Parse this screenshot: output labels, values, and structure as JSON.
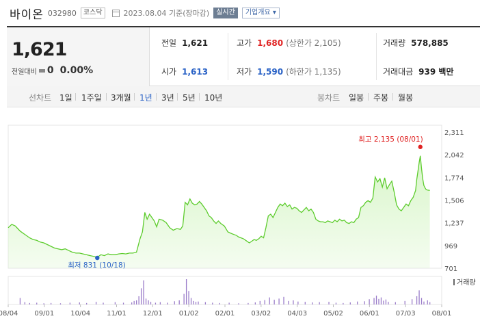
{
  "header": {
    "name": "바이온",
    "code": "032980",
    "market": "코스닥",
    "date": "2023.08.04 기준(장마감)",
    "realtime": "실시간",
    "overview": "기업개요"
  },
  "price": {
    "current": "1,621",
    "change_label": "전일대비",
    "change": "0",
    "rate": "0.00%"
  },
  "stats": {
    "prev_close_label": "전일",
    "prev_close": "1,621",
    "high_label": "고가",
    "high": "1,680",
    "upper_limit": "(상한가 2,105)",
    "volume_label": "거래량",
    "volume": "578,885",
    "open_label": "시가",
    "open": "1,613",
    "low_label": "저가",
    "low": "1,590",
    "lower_limit": "(하한가 1,135)",
    "amount_label": "거래대금",
    "amount": "939 백만"
  },
  "periods": {
    "line_label": "선차트",
    "line_items": [
      "1일",
      "1주일",
      "3개월",
      "1년",
      "3년",
      "5년",
      "10년"
    ],
    "active": "1년",
    "candle_label": "봉차트",
    "candle_items": [
      "일봉",
      "주봉",
      "월봉"
    ]
  },
  "colors": {
    "line": "#5dcc2d",
    "fill": "#d6f5c6",
    "volume": "#9a7cc9",
    "high_dot": "#e02424",
    "low_dot": "#2a62c6"
  },
  "chart_data": {
    "type": "area",
    "ylim": [
      701,
      2311
    ],
    "yticks": [
      "2,311",
      "2,042",
      "1,774",
      "1,506",
      "1,237",
      "969",
      "701"
    ],
    "xticks": [
      "08/04",
      "09/01",
      "10/04",
      "11/01",
      "12/01",
      "01/02",
      "02/01",
      "03/02",
      "04/03",
      "05/02",
      "06/01",
      "07/03",
      "08/01"
    ],
    "x_start": "2022-08-04",
    "x_end": "2023-08-04",
    "max_label": "최고 2,135 (08/01)",
    "min_label": "최저 831 (10/18)",
    "volume_label": "거래량",
    "price": [
      [
        0,
        1180
      ],
      [
        3,
        1220
      ],
      [
        6,
        1200
      ],
      [
        8,
        1170
      ],
      [
        10,
        1140
      ],
      [
        12,
        1120
      ],
      [
        15,
        1090
      ],
      [
        18,
        1060
      ],
      [
        21,
        1040
      ],
      [
        24,
        1030
      ],
      [
        27,
        1010
      ],
      [
        30,
        1000
      ],
      [
        33,
        980
      ],
      [
        36,
        960
      ],
      [
        39,
        940
      ],
      [
        42,
        930
      ],
      [
        45,
        920
      ],
      [
        48,
        930
      ],
      [
        51,
        910
      ],
      [
        54,
        890
      ],
      [
        57,
        880
      ],
      [
        60,
        880
      ],
      [
        63,
        870
      ],
      [
        66,
        860
      ],
      [
        69,
        850
      ],
      [
        72,
        840
      ],
      [
        75,
        831
      ],
      [
        78,
        860
      ],
      [
        81,
        850
      ],
      [
        84,
        870
      ],
      [
        87,
        860
      ],
      [
        90,
        860
      ],
      [
        93,
        870
      ],
      [
        96,
        875
      ],
      [
        99,
        870
      ],
      [
        102,
        880
      ],
      [
        105,
        880
      ],
      [
        108,
        890
      ],
      [
        111,
        1050
      ],
      [
        113,
        1130
      ],
      [
        115,
        1360
      ],
      [
        117,
        1280
      ],
      [
        119,
        1340
      ],
      [
        121,
        1300
      ],
      [
        123,
        1260
      ],
      [
        125,
        1190
      ],
      [
        127,
        1280
      ],
      [
        130,
        1270
      ],
      [
        133,
        1240
      ],
      [
        136,
        1180
      ],
      [
        139,
        1150
      ],
      [
        142,
        1170
      ],
      [
        145,
        1160
      ],
      [
        147,
        1200
      ],
      [
        149,
        1480
      ],
      [
        151,
        1450
      ],
      [
        153,
        1520
      ],
      [
        155,
        1470
      ],
      [
        157,
        1450
      ],
      [
        159,
        1460
      ],
      [
        161,
        1490
      ],
      [
        163,
        1460
      ],
      [
        165,
        1420
      ],
      [
        167,
        1380
      ],
      [
        169,
        1320
      ],
      [
        171,
        1300
      ],
      [
        173,
        1260
      ],
      [
        175,
        1230
      ],
      [
        177,
        1260
      ],
      [
        179,
        1230
      ],
      [
        182,
        1200
      ],
      [
        185,
        1130
      ],
      [
        188,
        1110
      ],
      [
        190,
        1100
      ],
      [
        192,
        1090
      ],
      [
        194,
        1070
      ],
      [
        196,
        1060
      ],
      [
        198,
        1050
      ],
      [
        200,
        1030
      ],
      [
        203,
        1000
      ],
      [
        205,
        1020
      ],
      [
        207,
        1040
      ],
      [
        209,
        1030
      ],
      [
        211,
        1050
      ],
      [
        213,
        1080
      ],
      [
        215,
        1060
      ],
      [
        217,
        1180
      ],
      [
        219,
        1320
      ],
      [
        221,
        1340
      ],
      [
        223,
        1300
      ],
      [
        225,
        1360
      ],
      [
        227,
        1420
      ],
      [
        229,
        1460
      ],
      [
        231,
        1440
      ],
      [
        233,
        1470
      ],
      [
        235,
        1430
      ],
      [
        237,
        1450
      ],
      [
        239,
        1400
      ],
      [
        241,
        1420
      ],
      [
        243,
        1410
      ],
      [
        245,
        1380
      ],
      [
        247,
        1360
      ],
      [
        249,
        1390
      ],
      [
        251,
        1420
      ],
      [
        253,
        1380
      ],
      [
        255,
        1400
      ],
      [
        257,
        1360
      ],
      [
        259,
        1280
      ],
      [
        261,
        1260
      ],
      [
        263,
        1250
      ],
      [
        265,
        1250
      ],
      [
        267,
        1240
      ],
      [
        269,
        1260
      ],
      [
        271,
        1250
      ],
      [
        273,
        1240
      ],
      [
        275,
        1270
      ],
      [
        277,
        1250
      ],
      [
        279,
        1280
      ],
      [
        281,
        1260
      ],
      [
        283,
        1270
      ],
      [
        285,
        1240
      ],
      [
        287,
        1230
      ],
      [
        289,
        1250
      ],
      [
        291,
        1240
      ],
      [
        293,
        1280
      ],
      [
        295,
        1300
      ],
      [
        297,
        1420
      ],
      [
        299,
        1440
      ],
      [
        301,
        1480
      ],
      [
        303,
        1500
      ],
      [
        305,
        1480
      ],
      [
        307,
        1530
      ],
      [
        309,
        1780
      ],
      [
        311,
        1720
      ],
      [
        313,
        1760
      ],
      [
        315,
        1660
      ],
      [
        317,
        1770
      ],
      [
        319,
        1640
      ],
      [
        321,
        1690
      ],
      [
        323,
        1730
      ],
      [
        325,
        1600
      ],
      [
        327,
        1450
      ],
      [
        329,
        1400
      ],
      [
        331,
        1380
      ],
      [
        333,
        1420
      ],
      [
        335,
        1460
      ],
      [
        337,
        1440
      ],
      [
        339,
        1500
      ],
      [
        341,
        1540
      ],
      [
        343,
        1620
      ],
      [
        344,
        1750
      ],
      [
        345,
        1850
      ],
      [
        346,
        1950
      ],
      [
        347,
        2030
      ],
      [
        348,
        1880
      ],
      [
        349,
        1760
      ],
      [
        350,
        1680
      ],
      [
        351,
        1650
      ],
      [
        352,
        1630
      ],
      [
        353,
        1625
      ],
      [
        355,
        1621
      ]
    ],
    "volume": [
      [
        10,
        22
      ],
      [
        14,
        8
      ],
      [
        18,
        5
      ],
      [
        24,
        6
      ],
      [
        30,
        4
      ],
      [
        36,
        5
      ],
      [
        44,
        4
      ],
      [
        52,
        6
      ],
      [
        60,
        7
      ],
      [
        66,
        5
      ],
      [
        74,
        9
      ],
      [
        80,
        6
      ],
      [
        90,
        8
      ],
      [
        97,
        6
      ],
      [
        104,
        7
      ],
      [
        106,
        12
      ],
      [
        108,
        14
      ],
      [
        110,
        28
      ],
      [
        112,
        55
      ],
      [
        114,
        82
      ],
      [
        116,
        20
      ],
      [
        118,
        14
      ],
      [
        120,
        9
      ],
      [
        124,
        6
      ],
      [
        128,
        8
      ],
      [
        134,
        6
      ],
      [
        140,
        11
      ],
      [
        144,
        14
      ],
      [
        148,
        36
      ],
      [
        150,
        86
      ],
      [
        152,
        46
      ],
      [
        154,
        22
      ],
      [
        156,
        12
      ],
      [
        158,
        9
      ],
      [
        160,
        10
      ],
      [
        166,
        8
      ],
      [
        172,
        6
      ],
      [
        178,
        5
      ],
      [
        186,
        6
      ],
      [
        194,
        4
      ],
      [
        202,
        5
      ],
      [
        208,
        7
      ],
      [
        212,
        12
      ],
      [
        216,
        15
      ],
      [
        220,
        24
      ],
      [
        224,
        16
      ],
      [
        228,
        20
      ],
      [
        232,
        26
      ],
      [
        236,
        12
      ],
      [
        240,
        14
      ],
      [
        244,
        10
      ],
      [
        250,
        9
      ],
      [
        256,
        7
      ],
      [
        262,
        8
      ],
      [
        270,
        9
      ],
      [
        276,
        6
      ],
      [
        282,
        5
      ],
      [
        288,
        7
      ],
      [
        294,
        10
      ],
      [
        300,
        11
      ],
      [
        304,
        18
      ],
      [
        308,
        22
      ],
      [
        310,
        30
      ],
      [
        312,
        19
      ],
      [
        314,
        24
      ],
      [
        316,
        13
      ],
      [
        318,
        17
      ],
      [
        320,
        9
      ],
      [
        326,
        8
      ],
      [
        334,
        12
      ],
      [
        340,
        18
      ],
      [
        344,
        28
      ],
      [
        346,
        48
      ],
      [
        348,
        22
      ],
      [
        350,
        10
      ],
      [
        353,
        14
      ],
      [
        355,
        8
      ]
    ]
  }
}
